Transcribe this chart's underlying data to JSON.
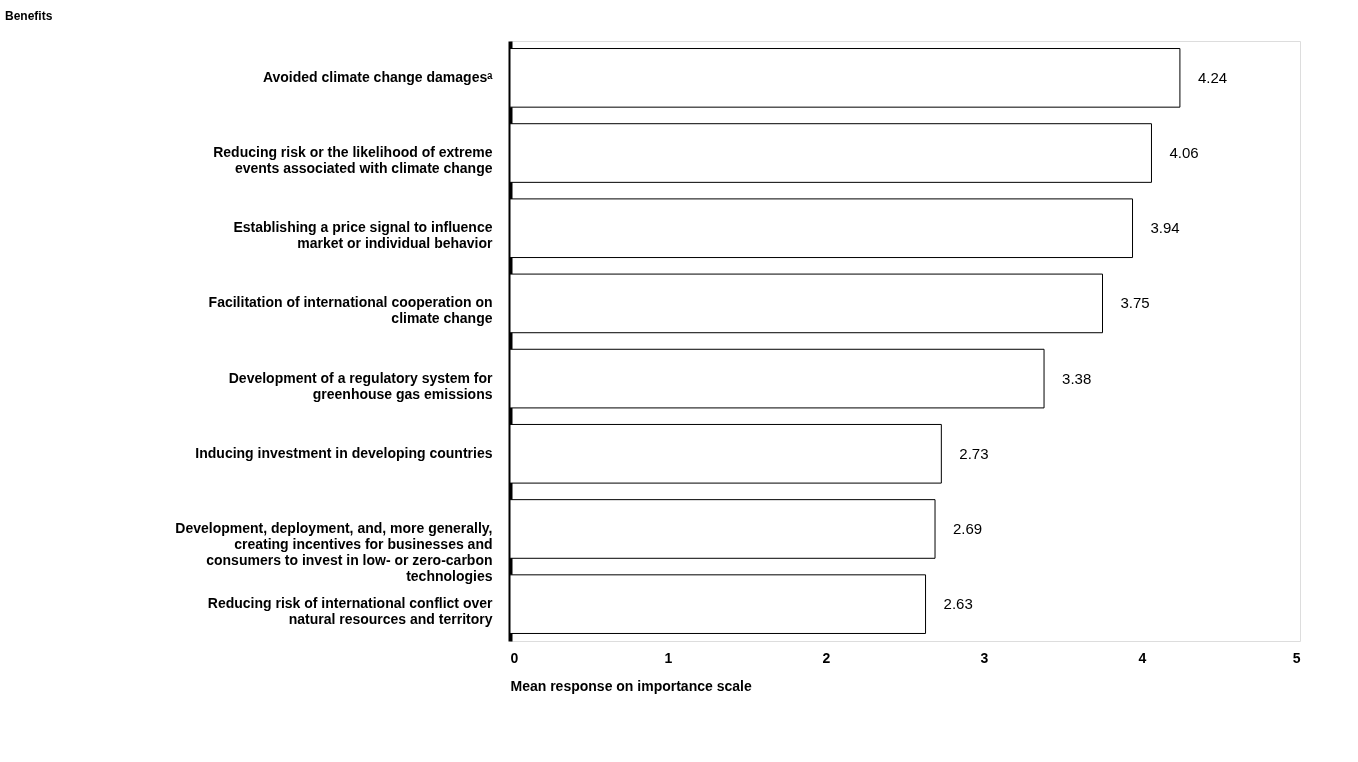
{
  "chart_data": {
    "type": "bar",
    "orientation": "horizontal",
    "annotations": [
      "Benefits"
    ],
    "xlabel": "Mean response on importance scale",
    "categories": [
      "Avoided climate change damagesᵃ",
      "Reducing risk or the likelihood of extreme events associated with climate change",
      "Establishing a price signal to influence market or individual behavior",
      "Facilitation of international cooperation on climate change",
      "Development of a regulatory system for greenhouse gas emissions",
      "Inducing investment in developing countries",
      "Development, deployment, and, more generally, creating incentives for businesses and consumers to invest in low- or zero-carbon technologies",
      "Reducing risk of international conflict over natural resources and territory"
    ],
    "values": [
      4.24,
      4.06,
      3.94,
      3.75,
      3.38,
      2.73,
      2.69,
      2.63
    ],
    "color": "#ffffff",
    "xlim": [
      0,
      5
    ],
    "xticks": [
      0,
      1,
      2,
      3,
      4,
      5
    ],
    "data_labels": true,
    "grid": false
  }
}
